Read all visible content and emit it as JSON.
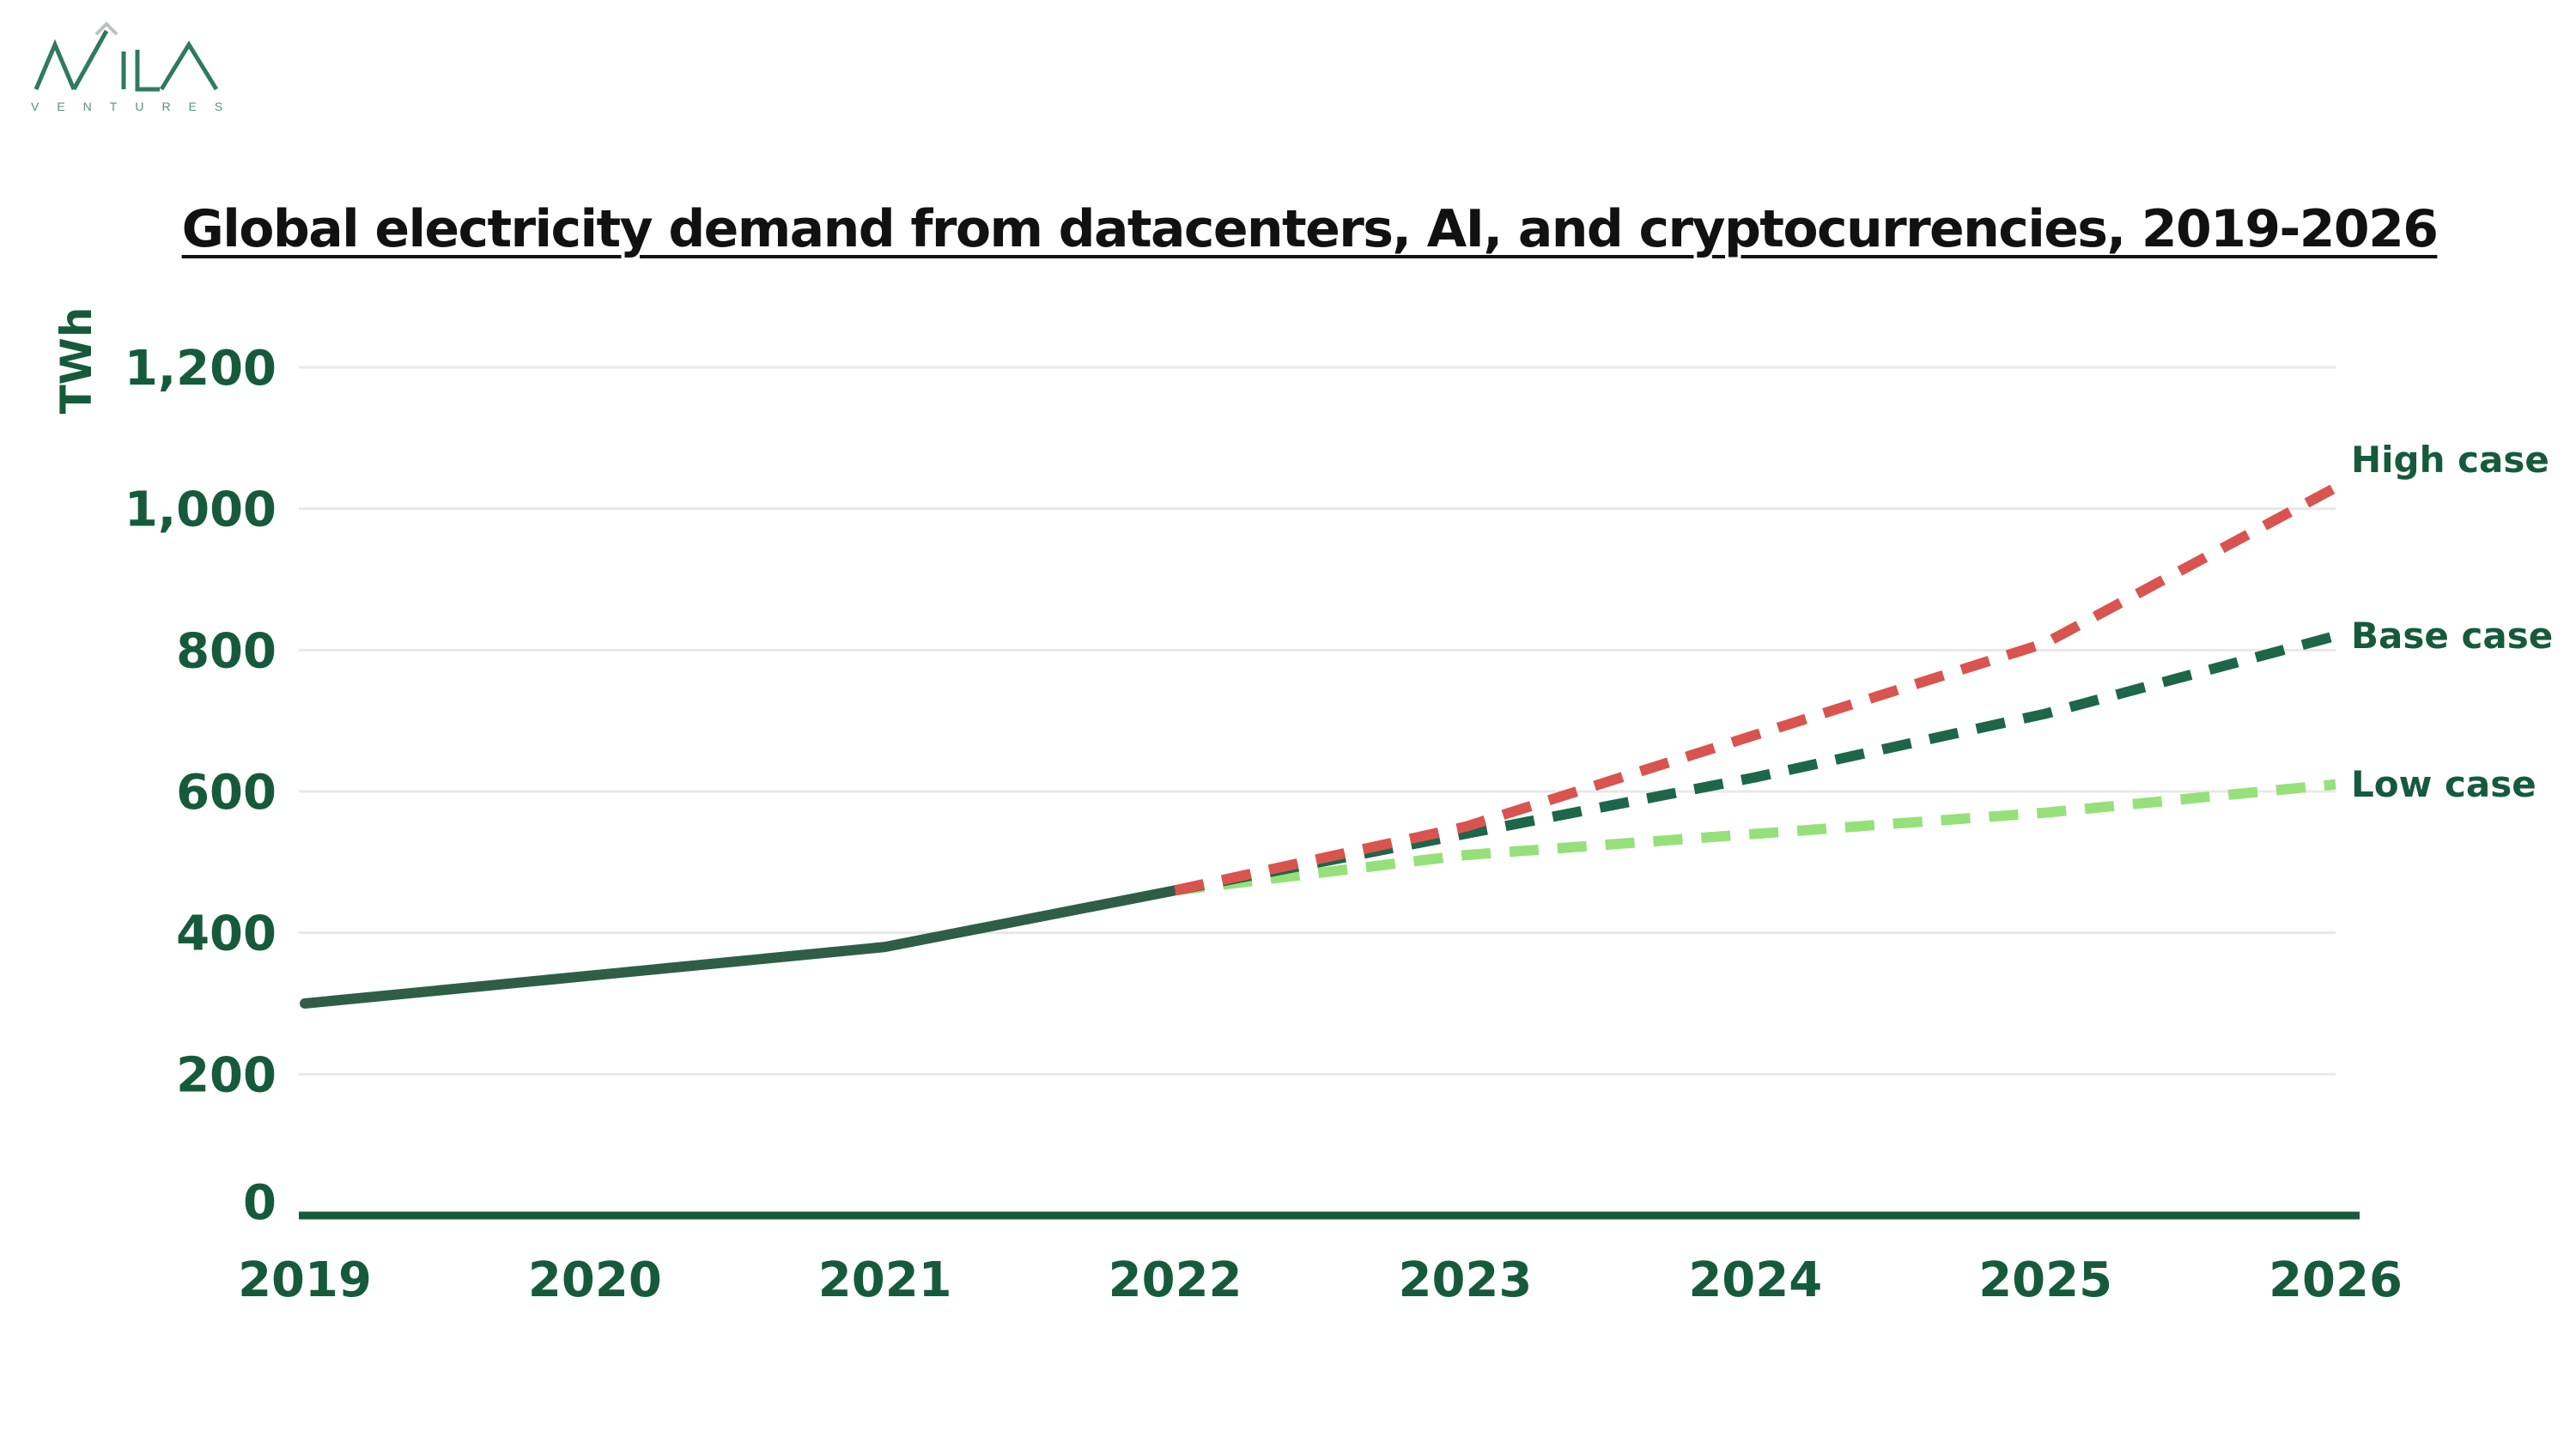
{
  "brand": {
    "logo_text": "AVILA",
    "tagline": "VENTURES",
    "colors": {
      "green": "#2f7a5e",
      "gray": "#bfbfbf"
    }
  },
  "chart_data": {
    "type": "line",
    "title": "Global electricity demand from datacenters, AI, and cryptocurrencies, 2019-2026",
    "ylabel": "TWh",
    "xlabel": "",
    "x": [
      "2019",
      "2020",
      "2021",
      "2022",
      "2023",
      "2024",
      "2025",
      "2026"
    ],
    "ylim": [
      0,
      1200
    ],
    "yticks": [
      0,
      200,
      400,
      600,
      800,
      1000,
      1200
    ],
    "ytick_labels": [
      "0",
      "200",
      "400",
      "600",
      "800",
      "1,000",
      "1,200"
    ],
    "grid": true,
    "series": [
      {
        "values": [
          300,
          340,
          380,
          460,
          null,
          null,
          null,
          null
        ],
        "style": "solid",
        "color": "#2e5e48"
      },
      {
        "name": "High case",
        "values": [
          null,
          null,
          null,
          460,
          550,
          680,
          810,
          1030
        ],
        "style": "dashed",
        "color": "#d9534f"
      },
      {
        "name": "Base case",
        "values": [
          null,
          null,
          null,
          460,
          540,
          620,
          710,
          820
        ],
        "style": "dashed",
        "color": "#1e6649"
      },
      {
        "name": "Low case",
        "values": [
          null,
          null,
          null,
          460,
          510,
          540,
          570,
          610
        ],
        "style": "dashed",
        "color": "#96e07a"
      }
    ]
  }
}
